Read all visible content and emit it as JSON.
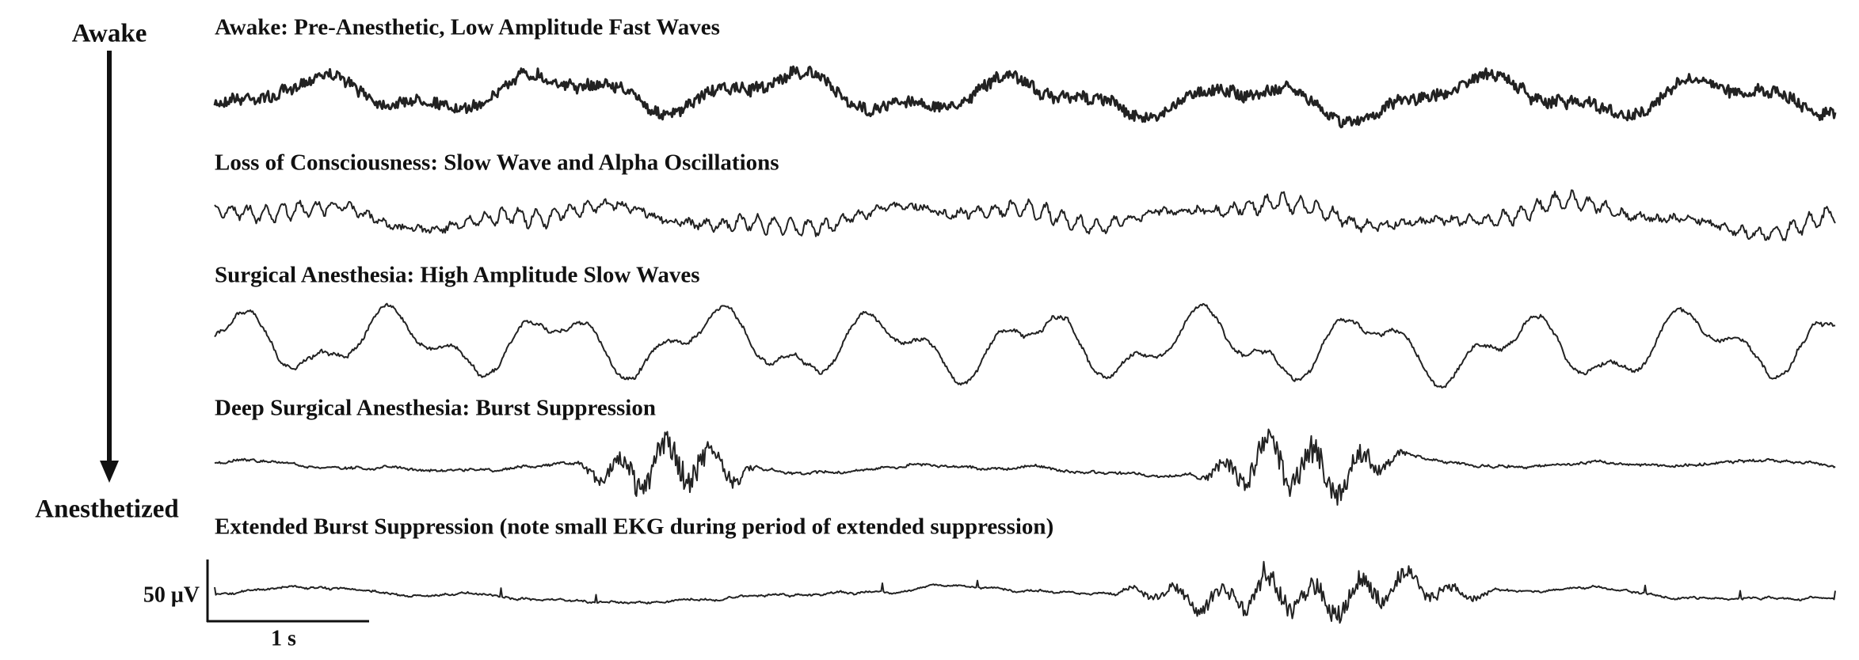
{
  "labels": {
    "top": "Awake",
    "bottom": "Anesthetized"
  },
  "traces": [
    {
      "title": "Awake: Pre-Anesthetic, Low Amplitude Fast Waves"
    },
    {
      "title": "Loss of Consciousness: Slow Wave and Alpha Oscillations"
    },
    {
      "title": "Surgical Anesthesia: High Amplitude Slow Waves"
    },
    {
      "title": "Deep Surgical Anesthesia: Burst Suppression"
    },
    {
      "title": "Extended Burst Suppression (note small EKG during period of extended suppression)"
    }
  ],
  "scale_bar": {
    "amplitude": "50 μV",
    "time": "1 s"
  }
}
